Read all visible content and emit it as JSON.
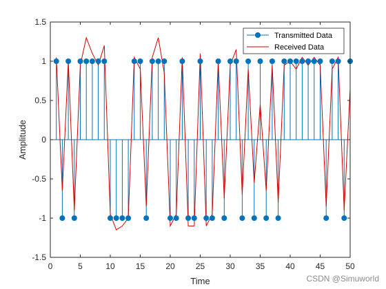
{
  "chart_data": {
    "type": "line",
    "xlabel": "Time",
    "ylabel": "Amplitude",
    "xlim": [
      0,
      50
    ],
    "ylim": [
      -1.5,
      1.5
    ],
    "xticks": [
      0,
      5,
      10,
      15,
      20,
      25,
      30,
      35,
      40,
      45,
      50
    ],
    "yticks": [
      -1.5,
      -1,
      -0.5,
      0,
      0.5,
      1,
      1.5
    ],
    "grid": false,
    "legend_position": "top-right",
    "series": [
      {
        "name": "Transmitted Data",
        "style": "stem",
        "color": "#0072BD",
        "x": [
          1,
          2,
          3,
          4,
          5,
          6,
          7,
          8,
          9,
          10,
          11,
          12,
          13,
          14,
          15,
          16,
          17,
          18,
          19,
          20,
          21,
          22,
          23,
          24,
          25,
          26,
          27,
          28,
          29,
          30,
          31,
          32,
          33,
          34,
          35,
          36,
          37,
          38,
          39,
          40,
          41,
          42,
          43,
          44,
          45,
          46,
          47,
          48,
          49,
          50
        ],
        "values": [
          1,
          -1,
          1,
          -1,
          1,
          1,
          1,
          1,
          1,
          -1,
          -1,
          -1,
          -1,
          1,
          1,
          -1,
          1,
          1,
          1,
          -1,
          -1,
          1,
          -1,
          -1,
          1,
          -1,
          -1,
          1,
          -1,
          1,
          1,
          -1,
          1,
          -1,
          1,
          -1,
          1,
          -1,
          1,
          1,
          1,
          1,
          1,
          1,
          1,
          -1,
          1,
          1,
          -1,
          1
        ]
      },
      {
        "name": "Received Data",
        "style": "line",
        "color": "#D95319",
        "x": [
          1,
          2,
          3,
          4,
          5,
          6,
          7,
          8,
          9,
          10,
          11,
          12,
          13,
          14,
          15,
          16,
          17,
          18,
          19,
          20,
          21,
          22,
          23,
          24,
          25,
          26,
          27,
          28,
          29,
          30,
          31,
          32,
          33,
          34,
          35,
          36,
          37,
          38,
          39,
          40,
          41,
          42,
          43,
          44,
          45,
          46,
          47,
          48,
          49,
          50
        ],
        "values": [
          1.05,
          -0.65,
          1.0,
          -0.9,
          0.95,
          1.3,
          1.1,
          0.95,
          1.2,
          -0.95,
          -1.15,
          -1.1,
          -1.0,
          1.05,
          0.9,
          -0.85,
          1.05,
          1.3,
          0.85,
          -1.1,
          -0.95,
          1.05,
          -1.1,
          -1.1,
          1.1,
          -1.1,
          -0.95,
          1.0,
          -0.75,
          0.95,
          1.15,
          -0.7,
          0.9,
          -0.55,
          0.45,
          -0.65,
          0.95,
          -0.8,
          0.95,
          1.0,
          0.9,
          1.05,
          0.95,
          1.05,
          0.95,
          -0.85,
          0.9,
          1.05,
          -0.9,
          0.65
        ]
      }
    ]
  },
  "watermark": "CSDN @Simuworld"
}
